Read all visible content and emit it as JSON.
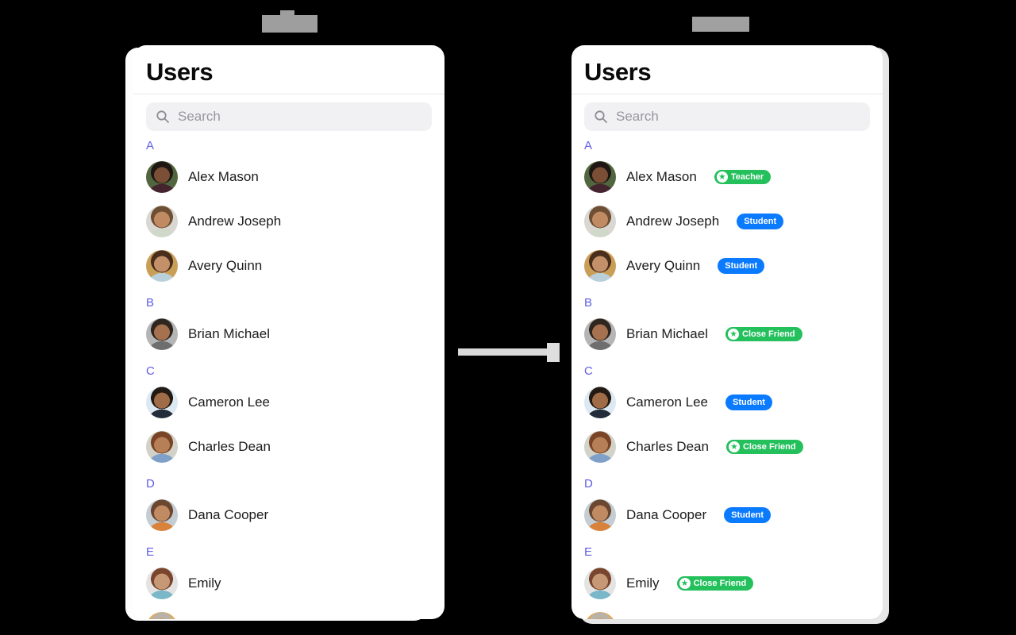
{
  "colors": {
    "background": "#000000",
    "card_bg": "#FFFFFF",
    "accent_indigo": "#5E5CE6",
    "badge_green": "#23C05C",
    "badge_blue": "#0A7AFF",
    "name_text": "#1C1C1E",
    "search_bg": "#F1F1F3",
    "arrow_gray": "#DADADA",
    "redaction_gray": "#9E9E9E"
  },
  "panels": [
    {
      "title": "Users",
      "search_placeholder": "Search",
      "show_badges": false
    },
    {
      "title": "Users",
      "search_placeholder": "Search",
      "show_badges": true
    }
  ],
  "sections": [
    {
      "letter": "A",
      "users": [
        {
          "name": "Alex Mason",
          "badge": {
            "label": "Teacher",
            "style": "green",
            "icon": "star"
          },
          "avatar": [
            "#51663f",
            "#1e1713",
            "#7a4f35",
            "#44242f"
          ]
        },
        {
          "name": "Andrew Joseph",
          "badge": {
            "label": "Student",
            "style": "blue",
            "icon": null
          },
          "avatar": [
            "#d9d7d2",
            "#6e4f33",
            "#c08a63",
            "#cfd8c9"
          ]
        },
        {
          "name": "Avery Quinn",
          "badge": {
            "label": "Student",
            "style": "blue",
            "icon": null
          },
          "avatar": [
            "#c99e56",
            "#4a2e1d",
            "#c4906a",
            "#b9d0da"
          ]
        }
      ]
    },
    {
      "letter": "B",
      "users": [
        {
          "name": "Brian Michael",
          "badge": {
            "label": "Close Friend",
            "style": "green",
            "icon": "star"
          },
          "avatar": [
            "#b5b5b5",
            "#2f2620",
            "#a5714e",
            "#6e6e6e"
          ]
        }
      ]
    },
    {
      "letter": "C",
      "users": [
        {
          "name": "Cameron Lee",
          "badge": {
            "label": "Student",
            "style": "blue",
            "icon": null
          },
          "avatar": [
            "#dce9f2",
            "#241a14",
            "#a06c47",
            "#232c3a"
          ]
        },
        {
          "name": "Charles Dean",
          "badge": {
            "label": "Close Friend",
            "style": "green",
            "icon": "star"
          },
          "avatar": [
            "#d3d2c8",
            "#7a4526",
            "#b67f56",
            "#7fa0c9"
          ]
        }
      ]
    },
    {
      "letter": "D",
      "users": [
        {
          "name": "Dana Cooper",
          "badge": {
            "label": "Student",
            "style": "blue",
            "icon": null
          },
          "avatar": [
            "#c4cdd4",
            "#6b4730",
            "#c08a63",
            "#d8823c"
          ]
        }
      ]
    },
    {
      "letter": "E",
      "users": [
        {
          "name": "Emily",
          "badge": {
            "label": "Close Friend",
            "style": "green",
            "icon": "star"
          },
          "avatar": [
            "#e3e3e3",
            "#79452c",
            "#c79875",
            "#79b7c9"
          ]
        }
      ]
    }
  ],
  "partial_user": {
    "avatar": [
      "#e2a85c",
      "#b9b2a6",
      "#c9a07e",
      "#cfc9bd"
    ]
  },
  "badge_star_glyph": "★"
}
